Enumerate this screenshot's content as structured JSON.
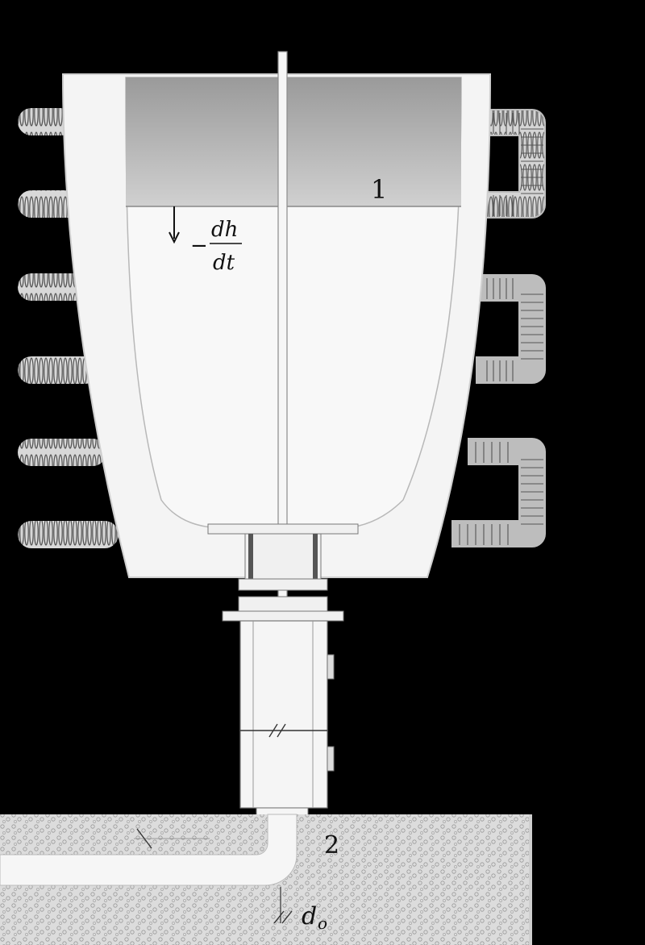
{
  "labels": {
    "ladle": "1",
    "dh": "dh",
    "dt": "dt",
    "minus": "−",
    "nozzle_exit": "2",
    "d_o": "d",
    "d_o_sub": "o"
  },
  "colors": {
    "background": "#000000",
    "vessel": "#f4f4f4",
    "molten_fill": "#c9c9c9",
    "sand": "#dedede",
    "coil": "#8a8a8a",
    "ink": "#111111"
  },
  "icons": {
    "down_arrow": "arrow-down-icon",
    "coil_turn": "coil-icon"
  }
}
